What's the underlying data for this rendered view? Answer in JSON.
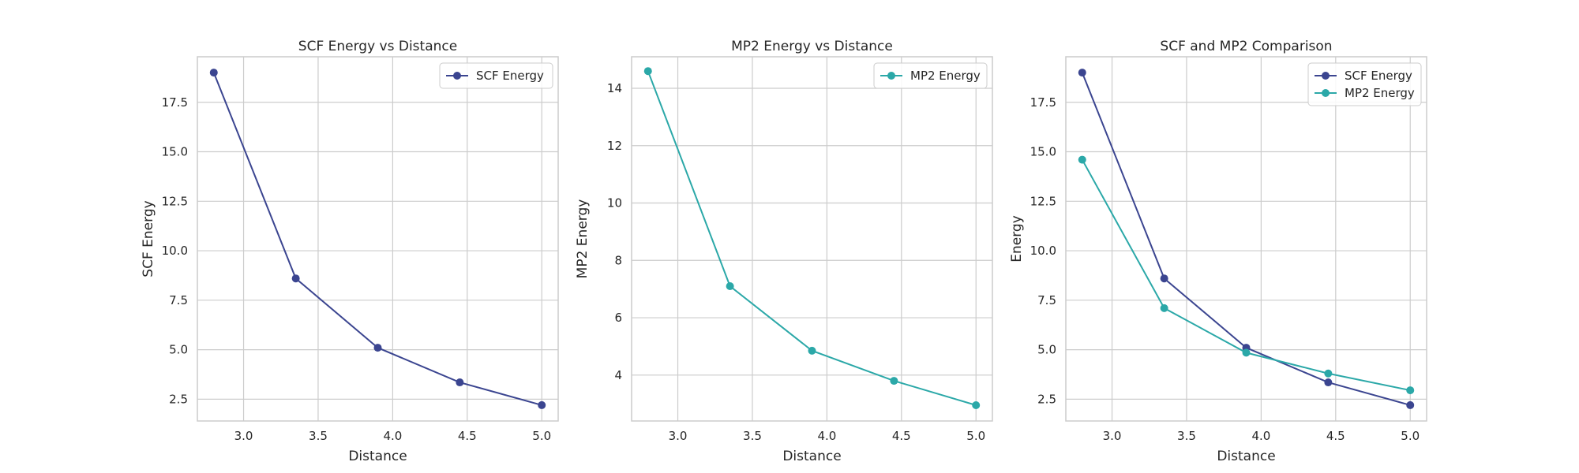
{
  "colors": {
    "scf": "#3b4590",
    "mp2": "#2ba8a8"
  },
  "chart_data": [
    {
      "type": "line",
      "title": "SCF Energy vs Distance",
      "xlabel": "Distance",
      "ylabel": "SCF Energy",
      "x": [
        2.8,
        3.35,
        3.9,
        4.45,
        5.0
      ],
      "xlim": [
        2.69,
        5.11
      ],
      "ylim": [
        1.4,
        19.8
      ],
      "xticks": [
        "3.0",
        "3.5",
        "4.0",
        "4.5",
        "5.0"
      ],
      "yticks": [
        "2.5",
        "5.0",
        "7.5",
        "10.0",
        "12.5",
        "15.0",
        "17.5"
      ],
      "grid": true,
      "legend": "top-right",
      "series": [
        {
          "name": "SCF Energy",
          "color_key": "scf",
          "marker": "circle",
          "values": [
            19.0,
            8.6,
            5.1,
            3.35,
            2.2
          ]
        }
      ]
    },
    {
      "type": "line",
      "title": "MP2 Energy vs Distance",
      "xlabel": "Distance",
      "ylabel": "MP2 Energy",
      "x": [
        2.8,
        3.35,
        3.9,
        4.45,
        5.0
      ],
      "xlim": [
        2.69,
        5.11
      ],
      "ylim": [
        2.4,
        15.1
      ],
      "xticks": [
        "3.0",
        "3.5",
        "4.0",
        "4.5",
        "5.0"
      ],
      "yticks": [
        "4",
        "6",
        "8",
        "10",
        "12",
        "14"
      ],
      "grid": true,
      "legend": "top-right",
      "series": [
        {
          "name": "MP2 Energy",
          "color_key": "mp2",
          "marker": "circle",
          "values": [
            14.6,
            7.1,
            4.85,
            3.8,
            2.95
          ]
        }
      ]
    },
    {
      "type": "line",
      "title": "SCF and MP2 Comparison",
      "xlabel": "Distance",
      "ylabel": "Energy",
      "x": [
        2.8,
        3.35,
        3.9,
        4.45,
        5.0
      ],
      "xlim": [
        2.69,
        5.11
      ],
      "ylim": [
        1.4,
        19.8
      ],
      "xticks": [
        "3.0",
        "3.5",
        "4.0",
        "4.5",
        "5.0"
      ],
      "yticks": [
        "2.5",
        "5.0",
        "7.5",
        "10.0",
        "12.5",
        "15.0",
        "17.5"
      ],
      "grid": true,
      "legend": "top-right",
      "series": [
        {
          "name": "SCF Energy",
          "color_key": "scf",
          "marker": "circle",
          "values": [
            19.0,
            8.6,
            5.1,
            3.35,
            2.2
          ]
        },
        {
          "name": "MP2 Energy",
          "color_key": "mp2",
          "marker": "circle",
          "values": [
            14.6,
            7.1,
            4.85,
            3.8,
            2.95
          ]
        }
      ]
    }
  ]
}
